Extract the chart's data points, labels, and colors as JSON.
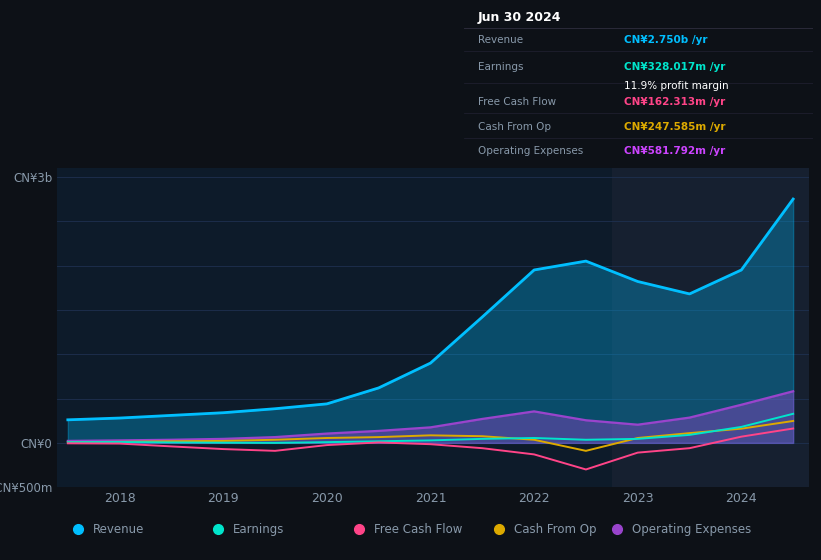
{
  "bg_color": "#0d1117",
  "plot_bg_color": "#0d1b2a",
  "highlight_bg_color": "#162030",
  "grid_color": "#1e3050",
  "text_color": "#8899aa",
  "title_color": "#ffffff",
  "ylim": [
    -500,
    3100
  ],
  "yticks": [
    -500,
    0,
    3000
  ],
  "ytick_labels": [
    "-CN¥500m",
    "CN¥0",
    "CN¥3b"
  ],
  "xlabel_years": [
    2018,
    2019,
    2020,
    2021,
    2022,
    2023,
    2024
  ],
  "highlight_start_x": 2022.75,
  "highlight_end_x": 2024.65,
  "xmin": 2017.4,
  "xmax": 2024.65,
  "series": {
    "Revenue": {
      "color": "#00bfff",
      "fill_alpha": 0.3,
      "x": [
        2017.5,
        2018.0,
        2018.25,
        2018.5,
        2019.0,
        2019.5,
        2020.0,
        2020.5,
        2021.0,
        2021.5,
        2022.0,
        2022.5,
        2023.0,
        2023.5,
        2024.0,
        2024.5
      ],
      "y": [
        260,
        280,
        295,
        310,
        340,
        385,
        440,
        620,
        900,
        1420,
        1950,
        2050,
        1820,
        1680,
        1950,
        2750
      ]
    },
    "Earnings": {
      "color": "#00e5cc",
      "x": [
        2017.5,
        2018.0,
        2018.5,
        2019.0,
        2019.5,
        2020.0,
        2020.5,
        2021.0,
        2021.5,
        2022.0,
        2022.5,
        2023.0,
        2023.5,
        2024.0,
        2024.5
      ],
      "y": [
        8,
        10,
        5,
        2,
        0,
        8,
        18,
        28,
        45,
        55,
        35,
        45,
        90,
        180,
        328
      ]
    },
    "Free Cash Flow": {
      "color": "#ff4488",
      "x": [
        2017.5,
        2018.0,
        2018.5,
        2019.0,
        2019.5,
        2020.0,
        2020.5,
        2021.0,
        2021.5,
        2022.0,
        2022.5,
        2023.0,
        2023.5,
        2024.0,
        2024.5
      ],
      "y": [
        -5,
        -8,
        -40,
        -70,
        -90,
        -25,
        5,
        -15,
        -60,
        -130,
        -300,
        -110,
        -60,
        70,
        162
      ]
    },
    "Cash From Op": {
      "color": "#ddaa00",
      "x": [
        2017.5,
        2018.0,
        2018.5,
        2019.0,
        2019.5,
        2020.0,
        2020.5,
        2021.0,
        2021.5,
        2022.0,
        2022.5,
        2023.0,
        2023.5,
        2024.0,
        2024.5
      ],
      "y": [
        8,
        12,
        18,
        22,
        35,
        55,
        65,
        85,
        75,
        35,
        -90,
        55,
        110,
        160,
        247
      ]
    },
    "Operating Expenses": {
      "color": "#9944cc",
      "fill_alpha": 0.4,
      "x": [
        2017.5,
        2018.0,
        2018.5,
        2019.0,
        2019.5,
        2020.0,
        2020.5,
        2021.0,
        2021.5,
        2022.0,
        2022.5,
        2023.0,
        2023.5,
        2024.0,
        2024.5
      ],
      "y": [
        22,
        28,
        35,
        45,
        65,
        105,
        135,
        175,
        270,
        355,
        255,
        205,
        285,
        430,
        582
      ]
    }
  },
  "tooltip": {
    "title": "Jun 30 2024",
    "bg": "#000000",
    "border": "#333344",
    "title_color": "#ffffff",
    "label_color": "#8899aa",
    "rows": [
      {
        "label": "Revenue",
        "value": "CN¥2.750b /yr",
        "value_color": "#00bfff",
        "extra": null
      },
      {
        "label": "Earnings",
        "value": "CN¥328.017m /yr",
        "value_color": "#00e5cc",
        "extra": "11.9% profit margin"
      },
      {
        "label": "Free Cash Flow",
        "value": "CN¥162.313m /yr",
        "value_color": "#ff4488",
        "extra": null
      },
      {
        "label": "Cash From Op",
        "value": "CN¥247.585m /yr",
        "value_color": "#ddaa00",
        "extra": null
      },
      {
        "label": "Operating Expenses",
        "value": "CN¥581.792m /yr",
        "value_color": "#cc44ff",
        "extra": null
      }
    ]
  },
  "legend_entries": [
    {
      "label": "Revenue",
      "color": "#00bfff"
    },
    {
      "label": "Earnings",
      "color": "#00e5cc"
    },
    {
      "label": "Free Cash Flow",
      "color": "#ff4488"
    },
    {
      "label": "Cash From Op",
      "color": "#ddaa00"
    },
    {
      "label": "Operating Expenses",
      "color": "#9944cc"
    }
  ]
}
